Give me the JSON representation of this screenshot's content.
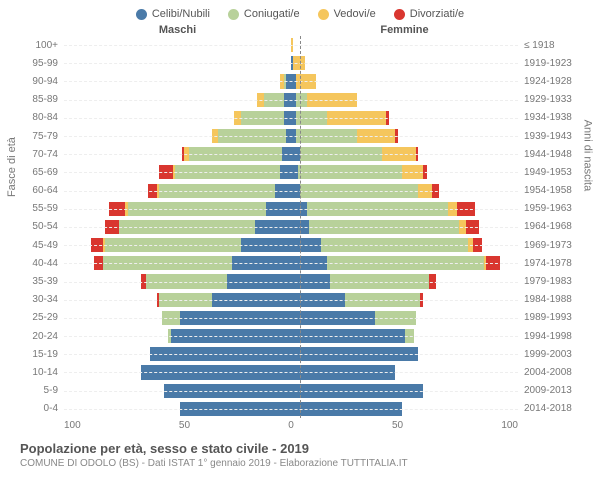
{
  "legend": [
    {
      "label": "Celibi/Nubili",
      "color": "#4a7aa8"
    },
    {
      "label": "Coniugati/e",
      "color": "#b8d19a"
    },
    {
      "label": "Vedovi/e",
      "color": "#f5c65d"
    },
    {
      "label": "Divorziati/e",
      "color": "#d9362f"
    }
  ],
  "headers": {
    "male": "Maschi",
    "female": "Femmine"
  },
  "axis_titles": {
    "left": "Fasce di età",
    "right": "Anni di nascita"
  },
  "x_ticks": [
    "100",
    "50",
    "0",
    "50",
    "100"
  ],
  "x_max": 100,
  "footer": {
    "title": "Popolazione per età, sesso e stato civile - 2019",
    "sub": "COMUNE DI ODOLO (BS) - Dati ISTAT 1° gennaio 2019 - Elaborazione TUTTITALIA.IT"
  },
  "colors": {
    "single": "#4a7aa8",
    "married": "#b8d19a",
    "widowed": "#f5c65d",
    "divorced": "#d9362f"
  },
  "rows": [
    {
      "age": "100+",
      "birth": "≤ 1918",
      "m": [
        0,
        0,
        0,
        0
      ],
      "f": [
        0,
        0,
        1,
        0
      ]
    },
    {
      "age": "95-99",
      "birth": "1919-1923",
      "m": [
        0,
        0,
        0,
        0
      ],
      "f": [
        1,
        0,
        5,
        0
      ]
    },
    {
      "age": "90-94",
      "birth": "1924-1928",
      "m": [
        2,
        1,
        2,
        0
      ],
      "f": [
        2,
        0,
        9,
        0
      ]
    },
    {
      "age": "85-89",
      "birth": "1929-1933",
      "m": [
        3,
        9,
        3,
        0
      ],
      "f": [
        2,
        5,
        22,
        0
      ]
    },
    {
      "age": "80-84",
      "birth": "1934-1938",
      "m": [
        3,
        19,
        3,
        0
      ],
      "f": [
        2,
        14,
        26,
        1
      ]
    },
    {
      "age": "75-79",
      "birth": "1939-1943",
      "m": [
        2,
        30,
        3,
        0
      ],
      "f": [
        2,
        27,
        17,
        1
      ]
    },
    {
      "age": "70-74",
      "birth": "1944-1948",
      "m": [
        4,
        41,
        2,
        1
      ],
      "f": [
        4,
        36,
        15,
        1
      ]
    },
    {
      "age": "65-69",
      "birth": "1949-1953",
      "m": [
        5,
        46,
        1,
        6
      ],
      "f": [
        3,
        46,
        9,
        2
      ]
    },
    {
      "age": "60-64",
      "birth": "1954-1958",
      "m": [
        7,
        51,
        1,
        4
      ],
      "f": [
        4,
        52,
        6,
        3
      ]
    },
    {
      "age": "55-59",
      "birth": "1959-1963",
      "m": [
        11,
        61,
        1,
        7
      ],
      "f": [
        7,
        62,
        4,
        8
      ]
    },
    {
      "age": "50-54",
      "birth": "1964-1968",
      "m": [
        16,
        60,
        0,
        6
      ],
      "f": [
        8,
        66,
        3,
        6
      ]
    },
    {
      "age": "45-49",
      "birth": "1969-1973",
      "m": [
        22,
        60,
        1,
        5
      ],
      "f": [
        13,
        65,
        2,
        4
      ]
    },
    {
      "age": "40-44",
      "birth": "1974-1978",
      "m": [
        26,
        57,
        0,
        4
      ],
      "f": [
        16,
        69,
        1,
        6
      ]
    },
    {
      "age": "35-39",
      "birth": "1979-1983",
      "m": [
        28,
        36,
        0,
        2
      ],
      "f": [
        17,
        44,
        0,
        3
      ]
    },
    {
      "age": "30-34",
      "birth": "1984-1988",
      "m": [
        35,
        23,
        0,
        1
      ],
      "f": [
        24,
        33,
        0,
        1
      ]
    },
    {
      "age": "25-29",
      "birth": "1989-1993",
      "m": [
        49,
        8,
        0,
        0
      ],
      "f": [
        37,
        18,
        0,
        0
      ]
    },
    {
      "age": "20-24",
      "birth": "1994-1998",
      "m": [
        53,
        1,
        0,
        0
      ],
      "f": [
        50,
        4,
        0,
        0
      ]
    },
    {
      "age": "15-19",
      "birth": "1999-2003",
      "m": [
        62,
        0,
        0,
        0
      ],
      "f": [
        56,
        0,
        0,
        0
      ]
    },
    {
      "age": "10-14",
      "birth": "2004-2008",
      "m": [
        66,
        0,
        0,
        0
      ],
      "f": [
        46,
        0,
        0,
        0
      ]
    },
    {
      "age": "5-9",
      "birth": "2009-2013",
      "m": [
        56,
        0,
        0,
        0
      ],
      "f": [
        58,
        0,
        0,
        0
      ]
    },
    {
      "age": "0-4",
      "birth": "2014-2018",
      "m": [
        49,
        0,
        0,
        0
      ],
      "f": [
        49,
        0,
        0,
        0
      ]
    }
  ]
}
